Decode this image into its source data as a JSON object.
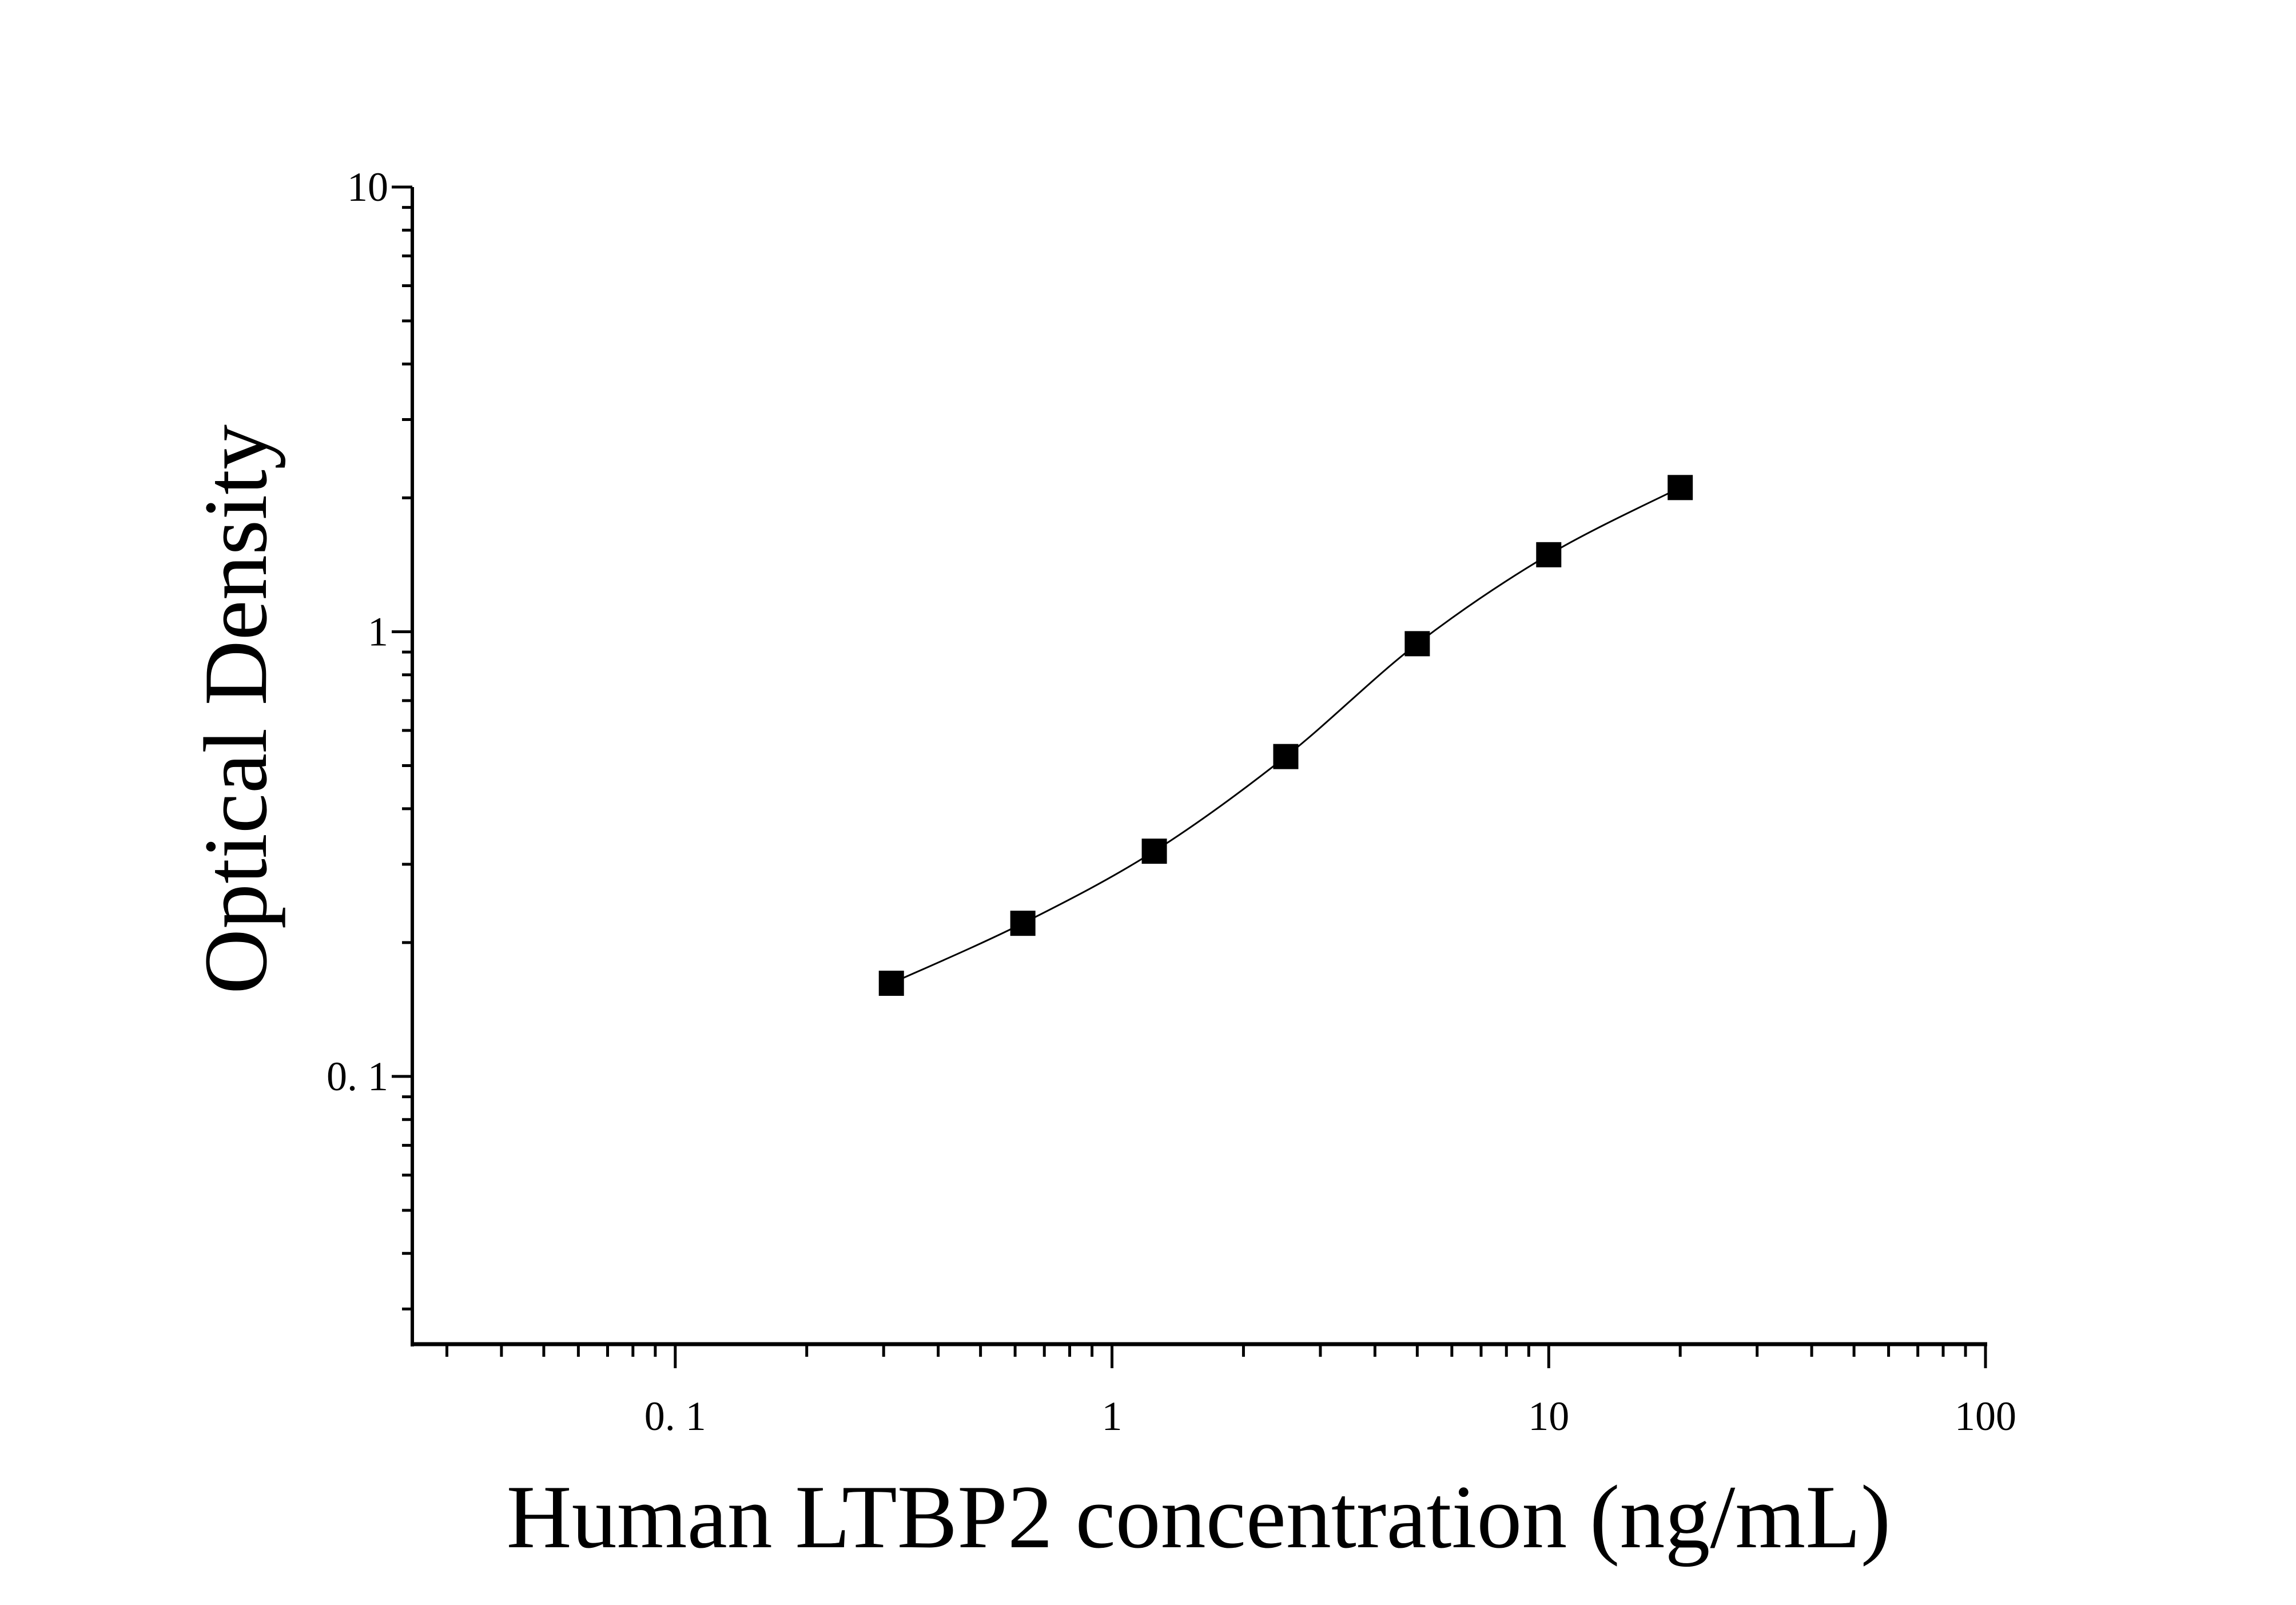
{
  "chart_data": {
    "type": "scatter",
    "title": "",
    "xlabel": "Human LTBP2 concentration (ng/mL)",
    "ylabel": "Optical Density",
    "xscale": "log",
    "yscale": "log",
    "xlim": [
      0.025,
      100
    ],
    "ylim": [
      0.025,
      10
    ],
    "xticks": [
      {
        "value": 0.1,
        "label": "0. 1"
      },
      {
        "value": 1,
        "label": "1"
      },
      {
        "value": 10,
        "label": "10"
      },
      {
        "value": 100,
        "label": "100"
      }
    ],
    "yticks": [
      {
        "value": 0.1,
        "label": "0. 1"
      },
      {
        "value": 1,
        "label": "1"
      },
      {
        "value": 10,
        "label": "10"
      }
    ],
    "grid": false,
    "marker": "square",
    "fit_line": "smooth curve",
    "color": "#000000",
    "x": [
      0.3125,
      0.625,
      1.25,
      2.5,
      5,
      10,
      20
    ],
    "y": [
      0.162,
      0.221,
      0.321,
      0.524,
      0.94,
      1.49,
      2.11
    ]
  }
}
